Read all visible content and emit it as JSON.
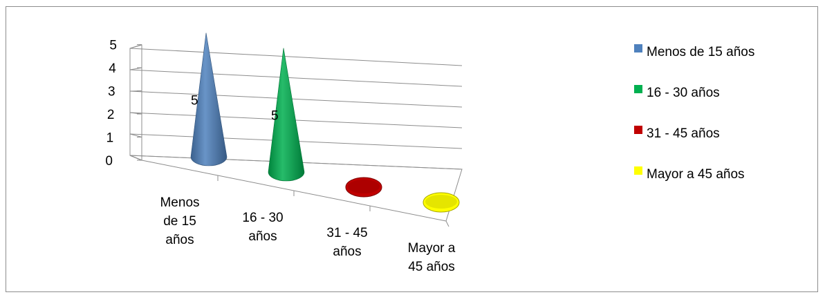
{
  "chart_data": {
    "type": "bar",
    "style": "3d-cone",
    "categories": [
      "Menos de 15 años",
      "16 - 30 años",
      "31 - 45 años",
      "Mayor a 45 años"
    ],
    "category_label_lines": [
      [
        "Menos",
        "de 15",
        "años"
      ],
      [
        "16 - 30",
        "años"
      ],
      [
        "31 - 45",
        "años"
      ],
      [
        "Mayor a",
        "45 años"
      ]
    ],
    "values": [
      5,
      5,
      0,
      0
    ],
    "data_labels": [
      "5",
      "5",
      "",
      ""
    ],
    "colors": [
      "#4f81bd",
      "#00b050",
      "#c00000",
      "#ffff00"
    ],
    "ylim": [
      0,
      5
    ],
    "yticks": [
      "0",
      "1",
      "2",
      "3",
      "4",
      "5"
    ],
    "grid": true,
    "legend": {
      "position": "right",
      "entries": [
        "Menos de 15 años",
        "16 - 30 años",
        "31 - 45 años",
        "Mayor a 45 años"
      ]
    },
    "title": "",
    "xlabel": "",
    "ylabel": ""
  }
}
